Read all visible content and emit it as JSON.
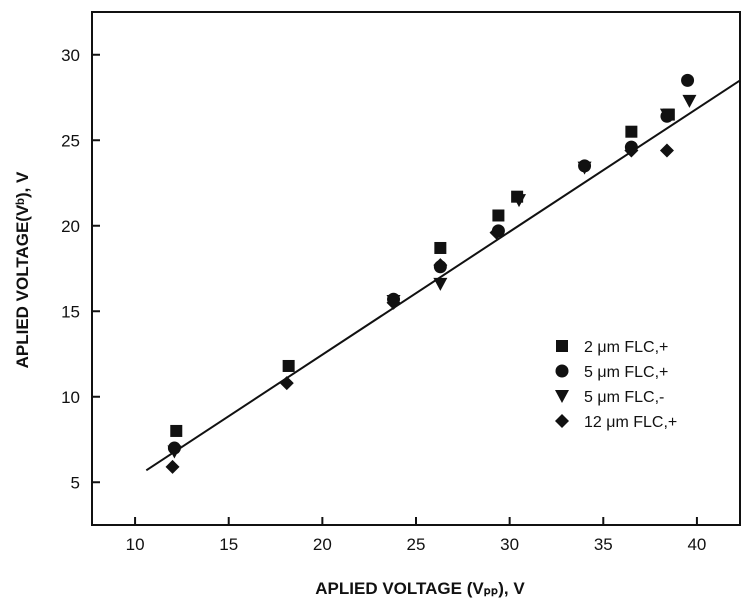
{
  "chart_data": {
    "type": "scatter",
    "title": "",
    "xlabel": "APLIED VOLTAGE (Vₚₚ), V",
    "ylabel": "APLIED VOLTAGE(Vᵇ), V",
    "xlim": [
      7.7,
      42.3
    ],
    "ylim": [
      2.5,
      32.5
    ],
    "xticks": [
      10,
      15,
      20,
      25,
      30,
      35,
      40
    ],
    "yticks": [
      5,
      10,
      15,
      20,
      25,
      30
    ],
    "grid": false,
    "legend_position": "lower-right",
    "series": [
      {
        "name": "2 μm FLC,+",
        "marker": "square",
        "points": [
          [
            12.2,
            8.0
          ],
          [
            18.2,
            11.8
          ],
          [
            26.3,
            18.7
          ],
          [
            29.4,
            20.6
          ],
          [
            30.4,
            21.7
          ],
          [
            36.5,
            25.5
          ],
          [
            38.5,
            26.5
          ]
        ]
      },
      {
        "name": "5 μm FLC,+",
        "marker": "circle",
        "points": [
          [
            12.1,
            7.0
          ],
          [
            23.8,
            15.7
          ],
          [
            26.3,
            17.6
          ],
          [
            29.4,
            19.7
          ],
          [
            34.0,
            23.5
          ],
          [
            36.5,
            24.6
          ],
          [
            38.4,
            26.4
          ],
          [
            39.5,
            28.5
          ]
        ]
      },
      {
        "name": "5 μm FLC,-",
        "marker": "triangle-down",
        "points": [
          [
            12.1,
            6.8
          ],
          [
            23.8,
            15.6
          ],
          [
            26.3,
            16.6
          ],
          [
            30.5,
            21.5
          ],
          [
            34.0,
            23.4
          ],
          [
            38.4,
            26.5
          ],
          [
            39.6,
            27.3
          ]
        ]
      },
      {
        "name": "12 μm FLC,+",
        "marker": "diamond",
        "points": [
          [
            12.0,
            5.9
          ],
          [
            18.1,
            10.8
          ],
          [
            23.8,
            15.5
          ],
          [
            26.3,
            17.7
          ],
          [
            29.3,
            19.6
          ],
          [
            36.5,
            24.4
          ],
          [
            38.4,
            24.4
          ]
        ]
      }
    ],
    "fit_line": {
      "x": [
        10.6,
        42.3
      ],
      "y": [
        5.7,
        28.5
      ]
    }
  }
}
